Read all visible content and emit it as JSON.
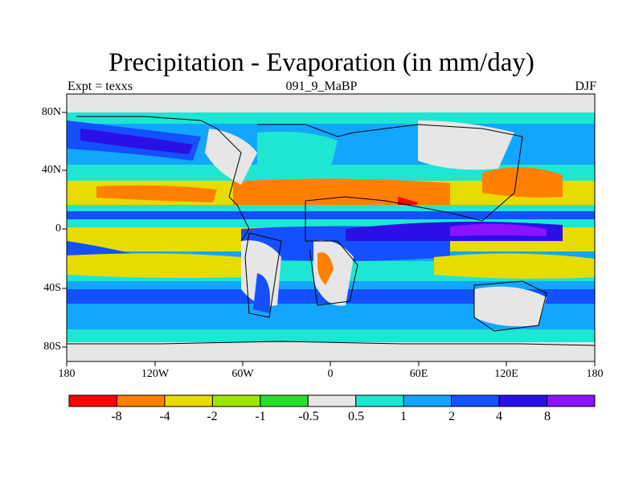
{
  "title": "Precipitation - Evaporation (in mm/day)",
  "subtitle_left": "Expt = texxs",
  "subtitle_center": "091_9_MaBP",
  "subtitle_right": "DJF",
  "lat_labels": [
    "80N",
    "40N",
    "0",
    "40S",
    "80S"
  ],
  "lon_labels": [
    "180",
    "120W",
    "60W",
    "0",
    "60E",
    "120E",
    "180"
  ],
  "colorbar": {
    "labels": [
      "-8",
      "-4",
      "-2",
      "-1",
      "-0.5",
      "0.5",
      "1",
      "2",
      "4",
      "8"
    ],
    "colors": [
      "#ff0000",
      "#ff8000",
      "#e6dc00",
      "#9ce600",
      "#2adf2a",
      "#e6e6e6",
      "#1ee6d2",
      "#12a6ff",
      "#1450ff",
      "#2a10e6",
      "#8a12ff"
    ]
  },
  "palette": {
    "red": "#ff0000",
    "orange": "#ff8000",
    "yellow": "#e6dc00",
    "lime": "#9ce600",
    "green": "#2adf2a",
    "gray": "#e6e6e6",
    "cyan": "#1ee6d2",
    "skyblue": "#12a6ff",
    "blue": "#1450ff",
    "darkblue": "#2a10e6",
    "purple": "#8a12ff"
  }
}
